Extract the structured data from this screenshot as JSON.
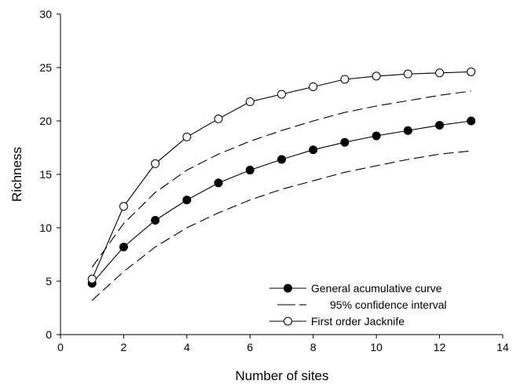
{
  "chart_data": {
    "type": "line",
    "title": "",
    "xlabel": "Number of sites",
    "ylabel": "Richness",
    "xlim": [
      0,
      14
    ],
    "ylim": [
      0,
      30
    ],
    "x_ticks": [
      0,
      2,
      4,
      6,
      8,
      10,
      12,
      14
    ],
    "y_ticks": [
      0,
      5,
      10,
      15,
      20,
      25,
      30
    ],
    "grid": false,
    "legend_position": "bottom-right",
    "series": [
      {
        "name": "General acumulative curve",
        "style": "filled-circle-line",
        "color": "#000000",
        "x": [
          1,
          2,
          3,
          4,
          5,
          6,
          7,
          8,
          9,
          10,
          11,
          12,
          13
        ],
        "y": [
          4.8,
          8.2,
          10.7,
          12.6,
          14.2,
          15.4,
          16.4,
          17.3,
          18.0,
          18.6,
          19.1,
          19.6,
          20.0
        ]
      },
      {
        "name": "95% confidence interval",
        "style": "dashed",
        "color": "#000000",
        "bands": [
          {
            "x": [
              1,
              2,
              3,
              4,
              5,
              6,
              7,
              8,
              9,
              10,
              11,
              12,
              13
            ],
            "y": [
              6.3,
              10.4,
              13.3,
              15.4,
              16.9,
              18.1,
              19.1,
              20.0,
              20.8,
              21.4,
              21.9,
              22.4,
              22.8
            ]
          },
          {
            "x": [
              1,
              2,
              3,
              4,
              5,
              6,
              7,
              8,
              9,
              10,
              11,
              12,
              13
            ],
            "y": [
              3.2,
              5.9,
              8.2,
              10.0,
              11.4,
              12.6,
              13.6,
              14.4,
              15.2,
              15.8,
              16.4,
              16.9,
              17.2
            ]
          }
        ]
      },
      {
        "name": "First order Jacknife",
        "style": "open-circle-line",
        "color": "#000000",
        "x": [
          1,
          2,
          3,
          4,
          5,
          6,
          7,
          8,
          9,
          10,
          11,
          12,
          13
        ],
        "y": [
          5.2,
          12.0,
          16.0,
          18.5,
          20.2,
          21.8,
          22.5,
          23.2,
          23.9,
          24.2,
          24.4,
          24.5,
          24.6
        ]
      }
    ]
  }
}
